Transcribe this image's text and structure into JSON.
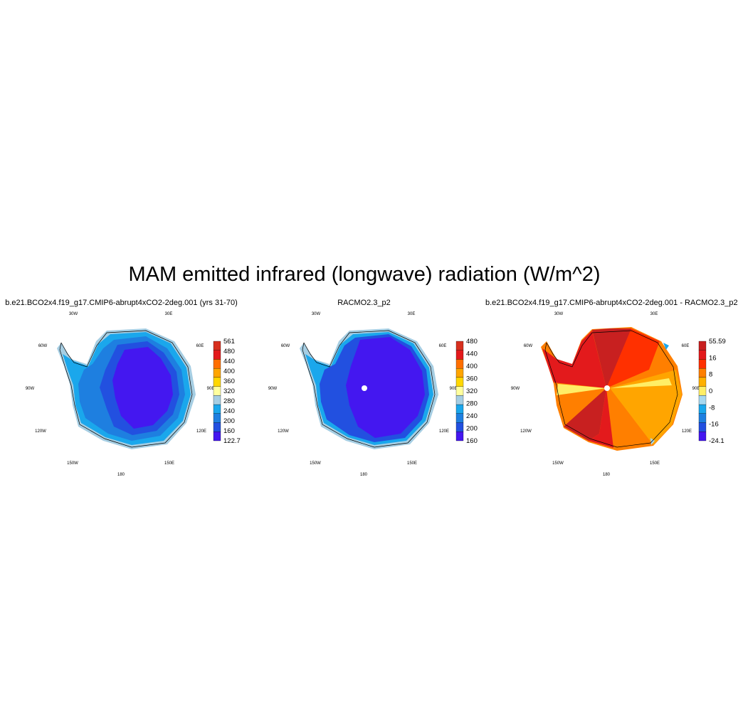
{
  "title": "MAM emitted infrared (longwave) radiation (W/m^2)",
  "lon_labels": [
    "30W",
    "30E",
    "60W",
    "60E",
    "90W",
    "90E",
    "120W",
    "120E",
    "150W",
    "150E",
    "180"
  ],
  "panels": [
    {
      "title": "b.e21.BCO2x4.f19_g17.CMIP6-abrupt4xCO2-2deg.001 (yrs 31-70)",
      "colorbar": {
        "labels": [
          "561",
          "480",
          "440",
          "400",
          "360",
          "320",
          "280",
          "240",
          "200",
          "160",
          "122.7"
        ],
        "colors": [
          "#d7301f",
          "#e31a1c",
          "#ff6f00",
          "#ffa500",
          "#ffd700",
          "#ffff9e",
          "#a6cee3",
          "#1aa7ec",
          "#1e7fe0",
          "#2250e0",
          "#4417f0"
        ]
      }
    },
    {
      "title": "RACMO2.3_p2",
      "colorbar": {
        "labels": [
          "480",
          "440",
          "400",
          "360",
          "320",
          "280",
          "240",
          "200",
          "160"
        ],
        "colors": [
          "#d7301f",
          "#e31a1c",
          "#ff6f00",
          "#ffa500",
          "#ffd700",
          "#ffff9e",
          "#a6cee3",
          "#1aa7ec",
          "#1e7fe0",
          "#2250e0",
          "#4417f0"
        ]
      }
    },
    {
      "title": "b.e21.BCO2x4.f19_g17.CMIP6-abrupt4xCO2-2deg.001 - RACMO2.3_p2",
      "colorbar": {
        "labels": [
          "55.59",
          "16",
          "8",
          "0",
          "-8",
          "-16",
          "-24.1"
        ],
        "colors": [
          "#c82020",
          "#e31a1c",
          "#ff3000",
          "#ff7f00",
          "#ffb000",
          "#ffee66",
          "#a6d8f0",
          "#1aa7ec",
          "#1e7fe0",
          "#2250e0",
          "#4417f0"
        ]
      }
    }
  ]
}
